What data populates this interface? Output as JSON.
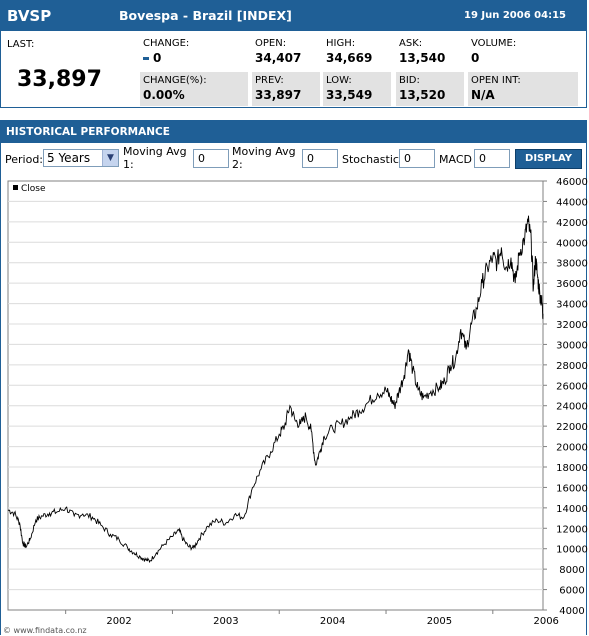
{
  "quote": {
    "symbol": "BVSP",
    "name": "Bovespa - Brazil [INDEX]",
    "datetime": "19 Jun 2006 04:15",
    "last_label": "LAST:",
    "last_value": "33,897",
    "fields": [
      {
        "label": "CHANGE:",
        "value": "0",
        "shaded": false
      },
      {
        "label": "OPEN:",
        "value": "34,407",
        "shaded": false
      },
      {
        "label": "HIGH:",
        "value": "34,669",
        "shaded": false
      },
      {
        "label": "ASK:",
        "value": "13,540",
        "shaded": false
      },
      {
        "label": "VOLUME:",
        "value": "0",
        "shaded": false
      },
      {
        "label": "CHANGE(%):",
        "value": "0.00%",
        "shaded": true
      },
      {
        "label": "PREV:",
        "value": "33,897",
        "shaded": true
      },
      {
        "label": "LOW:",
        "value": "33,549",
        "shaded": true
      },
      {
        "label": "BID:",
        "value": "13,520",
        "shaded": true
      },
      {
        "label": "OPEN INT:",
        "value": "N/A",
        "shaded": true
      }
    ]
  },
  "history": {
    "title": "HISTORICAL PERFORMANCE",
    "period_label": "Period:",
    "period_value": "5 Years",
    "ma1_label_line1": "Moving Avg",
    "ma1_label_line2": "1:",
    "ma1_value": "0",
    "ma2_label_line1": "Moving Avg",
    "ma2_label_line2": "2:",
    "ma2_value": "0",
    "stochastic_label": "Stochastic:",
    "stochastic_value": "0",
    "macd_label": "MACD",
    "macd_value": "0",
    "display_button": "DISPLAY",
    "footer": "© www.findata.co.nz"
  },
  "colors": {
    "brand": "#1f5f96",
    "shade": "#e2e2e2",
    "line": "#000000"
  },
  "chart_data": {
    "type": "line",
    "legend": [
      "Close"
    ],
    "x_ticks": [
      "2002",
      "2003",
      "2004",
      "2005",
      "2006"
    ],
    "y_ticks": [
      4000,
      6000,
      8000,
      10000,
      12000,
      14000,
      16000,
      18000,
      20000,
      22000,
      24000,
      26000,
      28000,
      30000,
      32000,
      34000,
      36000,
      38000,
      40000,
      42000,
      44000,
      46000
    ],
    "ylim": [
      4000,
      46000
    ],
    "xlim": [
      2001.46,
      2006.47
    ],
    "grid": "horizontal",
    "series": [
      {
        "name": "Close",
        "x": [
          2001.46,
          2001.52,
          2001.57,
          2001.6,
          2001.63,
          2001.67,
          2001.72,
          2001.78,
          2001.85,
          2001.92,
          2002.0,
          2002.08,
          2002.16,
          2002.25,
          2002.33,
          2002.42,
          2002.5,
          2002.58,
          2002.64,
          2002.7,
          2002.75,
          2002.79,
          2002.85,
          2002.92,
          2003.0,
          2003.06,
          2003.1,
          2003.15,
          2003.2,
          2003.25,
          2003.33,
          2003.42,
          2003.5,
          2003.58,
          2003.67,
          2003.75,
          2003.83,
          2003.92,
          2004.0,
          2004.05,
          2004.1,
          2004.15,
          2004.2,
          2004.25,
          2004.3,
          2004.34,
          2004.38,
          2004.42,
          2004.5,
          2004.58,
          2004.67,
          2004.75,
          2004.83,
          2004.92,
          2005.0,
          2005.04,
          2005.08,
          2005.12,
          2005.17,
          2005.21,
          2005.25,
          2005.3,
          2005.35,
          2005.42,
          2005.5,
          2005.55,
          2005.6,
          2005.65,
          2005.7,
          2005.75,
          2005.8,
          2005.85,
          2005.9,
          2005.95,
          2006.0,
          2006.04,
          2006.08,
          2006.12,
          2006.17,
          2006.21,
          2006.25,
          2006.3,
          2006.33,
          2006.36,
          2006.38,
          2006.4,
          2006.42,
          2006.44,
          2006.46,
          2006.47
        ],
        "values": [
          13800,
          13500,
          12500,
          10500,
          10200,
          11000,
          12800,
          13200,
          13500,
          13600,
          14000,
          13200,
          13400,
          13100,
          12300,
          11400,
          10900,
          10100,
          9600,
          9200,
          8900,
          8800,
          9600,
          10400,
          11200,
          11800,
          10900,
          10200,
          10100,
          11000,
          12200,
          12800,
          12500,
          13300,
          13100,
          16000,
          17800,
          19500,
          21200,
          22000,
          24000,
          22500,
          22200,
          23000,
          21500,
          18200,
          19500,
          21000,
          21800,
          22200,
          22900,
          23500,
          24300,
          25200,
          25500,
          24800,
          24000,
          25300,
          27000,
          29500,
          27500,
          25500,
          24800,
          25400,
          25800,
          26400,
          28000,
          28500,
          31500,
          29500,
          32000,
          33500,
          36000,
          37500,
          38500,
          38000,
          39500,
          37500,
          38500,
          36000,
          39000,
          40500,
          42000,
          40000,
          35500,
          38500,
          36500,
          35000,
          34000,
          33000
        ]
      }
    ]
  }
}
